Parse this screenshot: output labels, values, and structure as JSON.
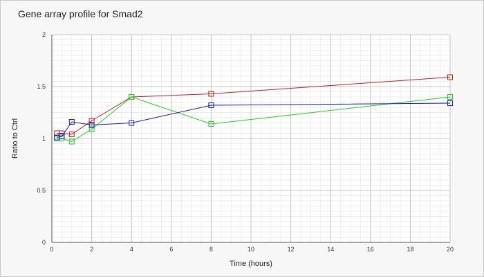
{
  "chart_data": {
    "type": "line",
    "title": "Gene array profile for Smad2",
    "xlabel": "Time (hours)",
    "ylabel": "Ratio to Ctrl",
    "xlim": [
      0,
      20
    ],
    "ylim": [
      0,
      2
    ],
    "xticks": [
      "0",
      "2",
      "4",
      "6",
      "8",
      "10",
      "12",
      "14",
      "16",
      "18",
      "20"
    ],
    "yticks": [
      "0",
      "0.5",
      "1",
      "1.5",
      "2"
    ],
    "grid": true,
    "marker": "square",
    "series": [
      {
        "color": "#b22222",
        "x": [
          0.25,
          0.5,
          1,
          2,
          4,
          8,
          20
        ],
        "y": [
          1.05,
          1.05,
          1.04,
          1.17,
          1.4,
          1.43,
          1.59
        ]
      },
      {
        "color": "#22cc22",
        "x": [
          0.25,
          0.5,
          1,
          2,
          4,
          8,
          20
        ],
        "y": [
          1.0,
          1.0,
          0.97,
          1.09,
          1.4,
          1.14,
          1.4
        ]
      },
      {
        "color": "#1a1aaa",
        "x": [
          0.25,
          0.5,
          1,
          2,
          4,
          8,
          20
        ],
        "y": [
          1.01,
          1.02,
          1.16,
          1.13,
          1.15,
          1.32,
          1.34
        ]
      }
    ]
  }
}
